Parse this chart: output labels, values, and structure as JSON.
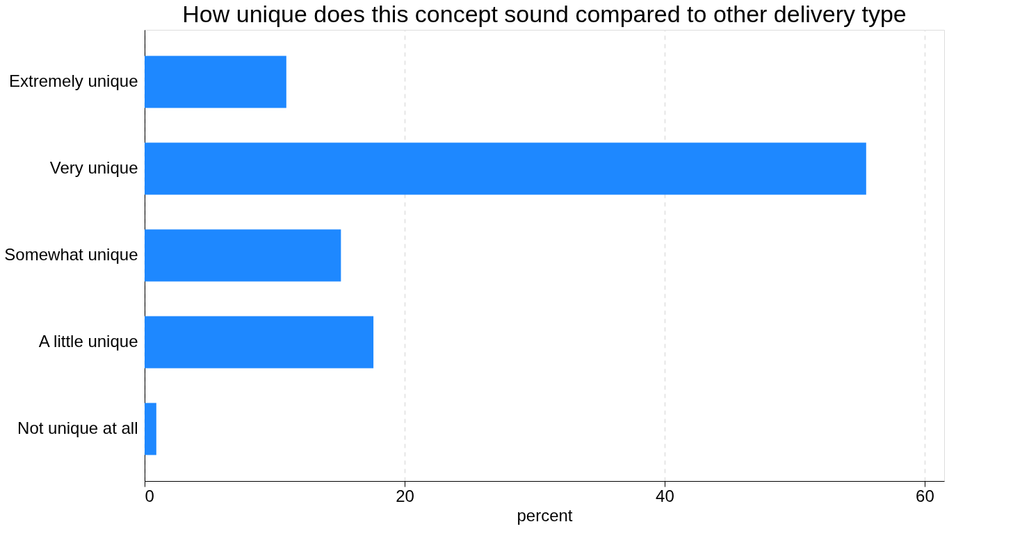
{
  "chart_data": {
    "type": "bar",
    "orientation": "horizontal",
    "title": "How unique does this concept sound compared to other delivery type",
    "categories": [
      "Extremely unique",
      "Very unique",
      "Somewhat unique",
      "A little unique",
      "Not unique at all"
    ],
    "values": [
      10.9,
      55.5,
      15.1,
      17.6,
      0.9
    ],
    "color": "#1e88ff",
    "xlabel": "percent",
    "xlim": [
      0,
      61.5
    ],
    "xticks": [
      0,
      20,
      40,
      60
    ],
    "grid": "x"
  }
}
